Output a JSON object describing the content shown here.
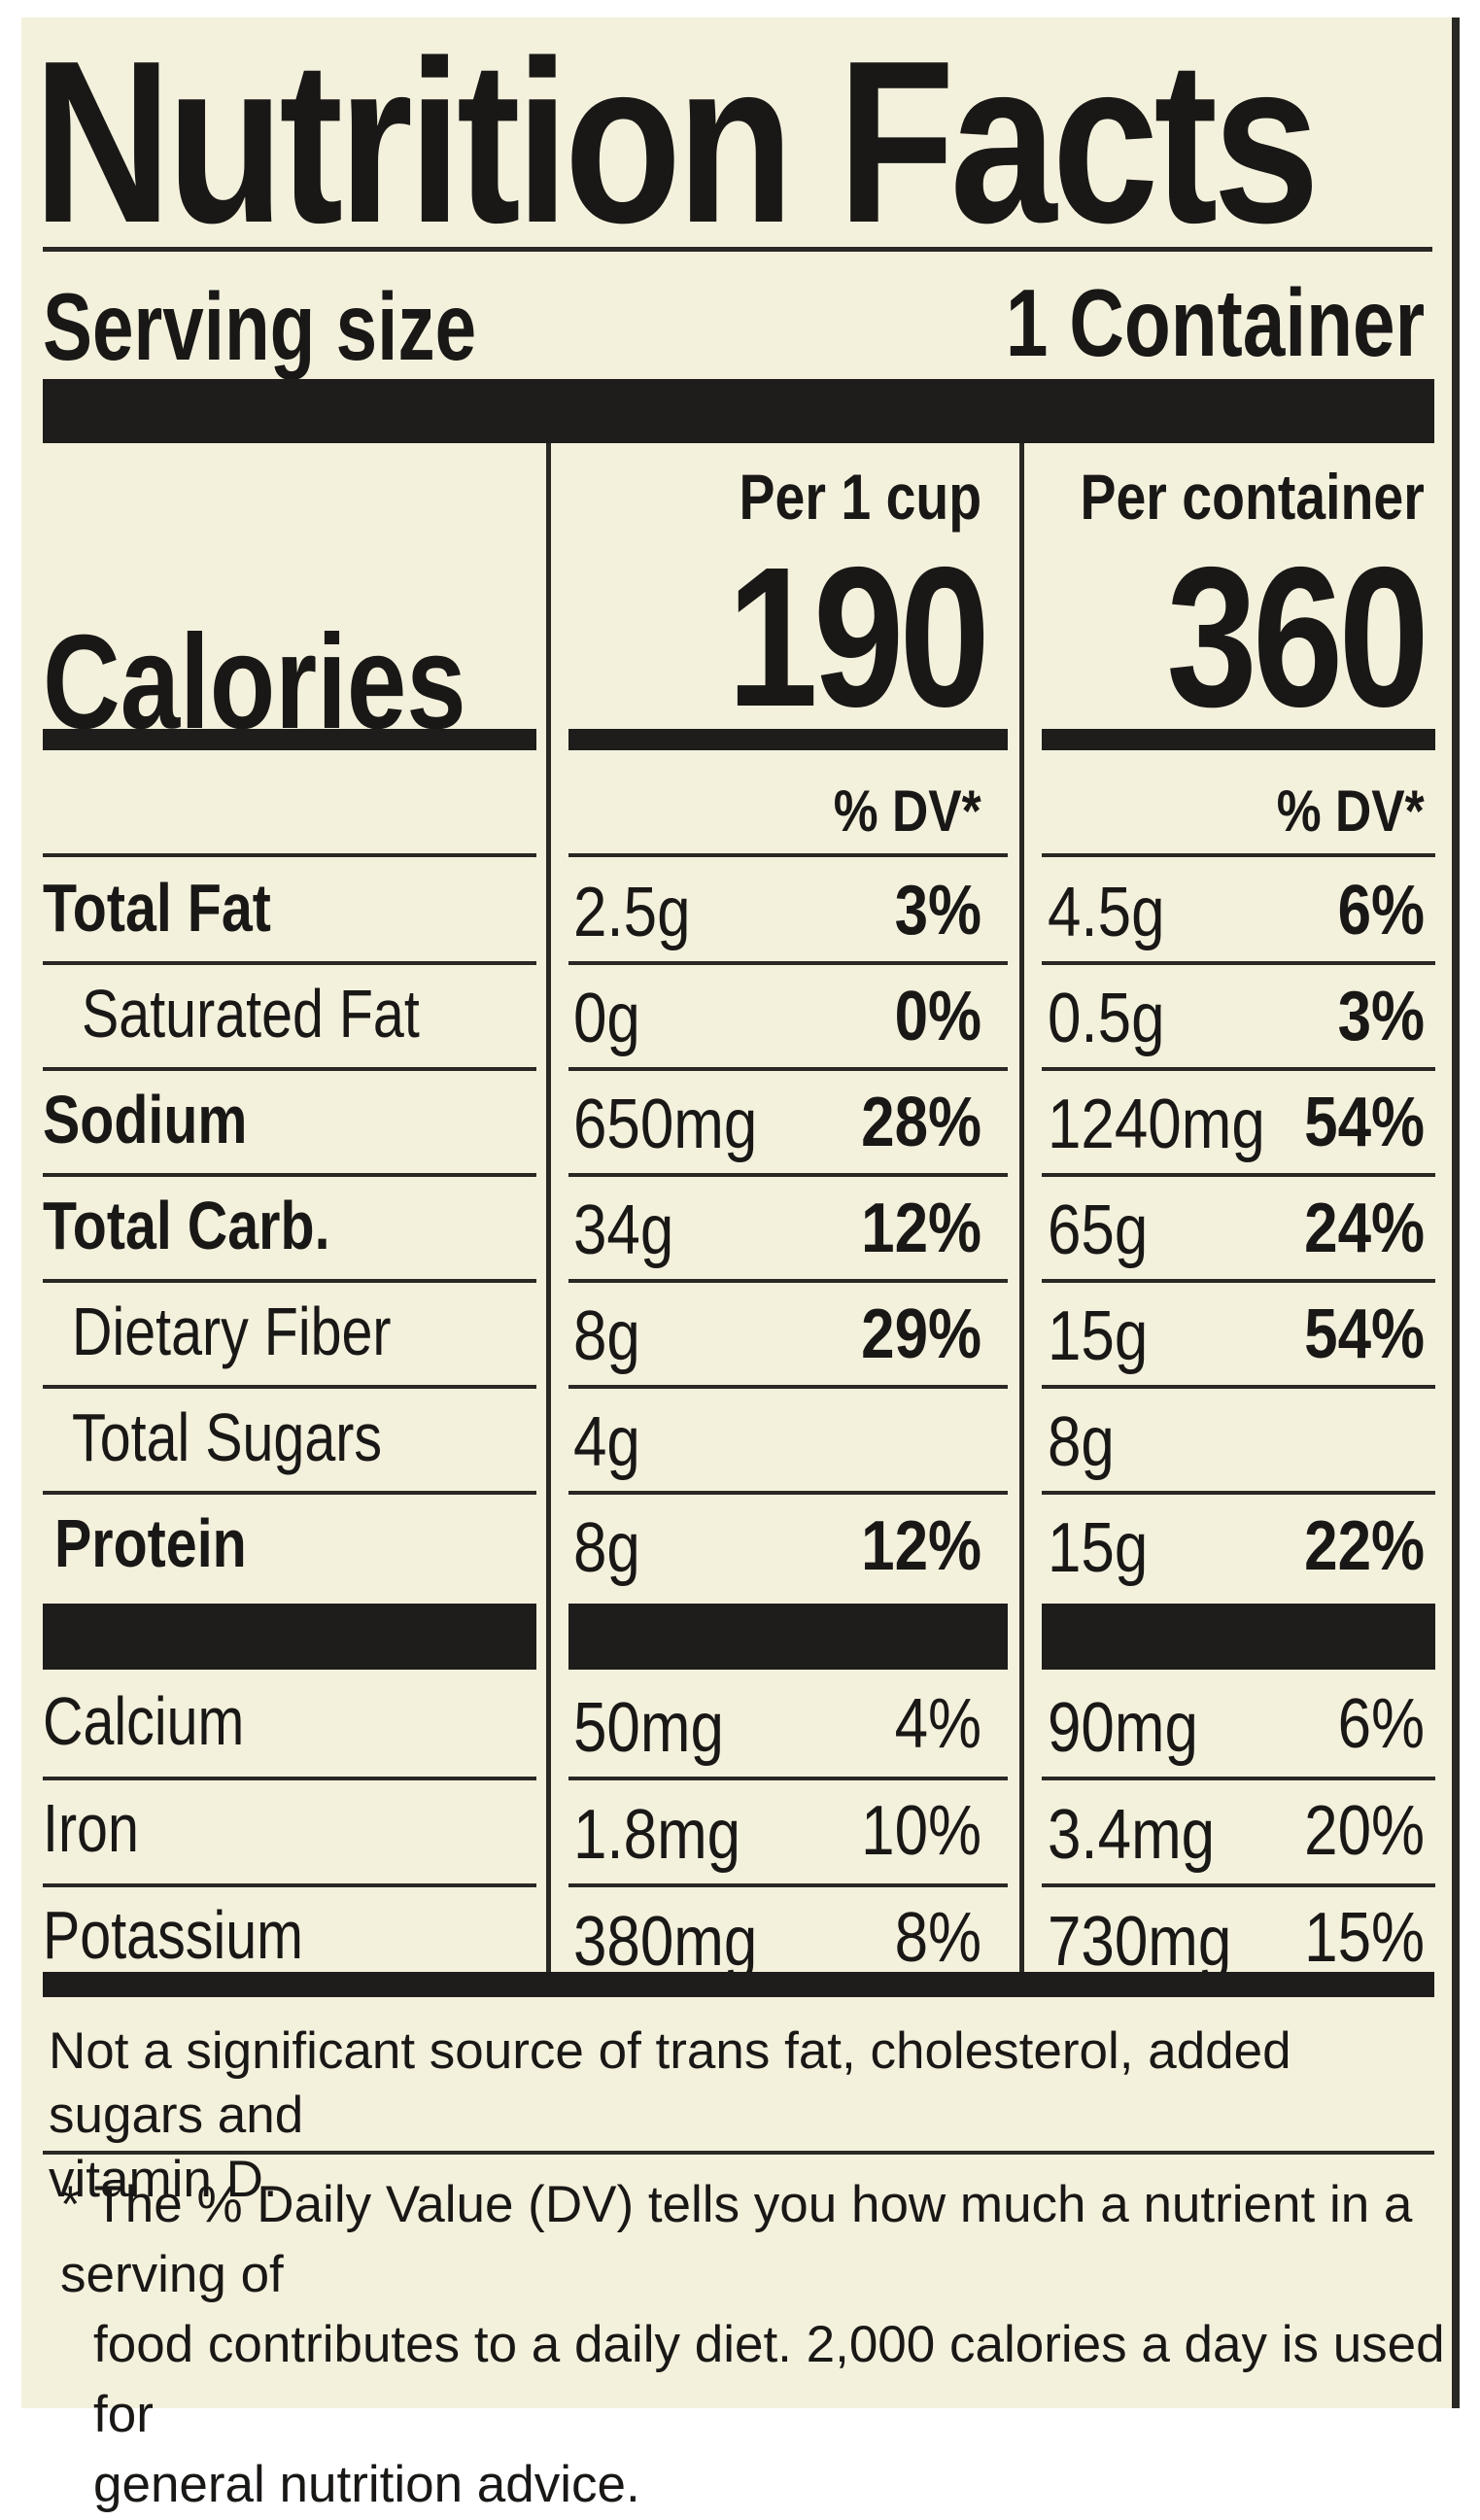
{
  "label": {
    "title": "Nutrition Facts",
    "serving_size_label": "Serving size",
    "serving_size_value": "1 Container",
    "col1_header": "Per 1 cup",
    "col2_header": "Per container",
    "calories_label": "Calories",
    "calories_col1": "190",
    "calories_col2": "360",
    "dv_header": "% DV*",
    "nutrients": [
      {
        "name": "Total Fat",
        "bold": true,
        "col1_amount": "2.5g",
        "col1_dv": "3%",
        "col2_amount": "4.5g",
        "col2_dv": "6%"
      },
      {
        "name": "Saturated Fat",
        "bold": false,
        "col1_amount": "0g",
        "col1_dv": "0%",
        "col2_amount": "0.5g",
        "col2_dv": "3%"
      },
      {
        "name": "Sodium",
        "bold": true,
        "col1_amount": "650mg",
        "col1_dv": "28%",
        "col2_amount": "1240mg",
        "col2_dv": "54%"
      },
      {
        "name": "Total Carb.",
        "bold": true,
        "col1_amount": "34g",
        "col1_dv": "12%",
        "col2_amount": "65g",
        "col2_dv": "24%"
      },
      {
        "name": "Dietary Fiber",
        "bold": false,
        "col1_amount": "8g",
        "col1_dv": "29%",
        "col2_amount": "15g",
        "col2_dv": "54%"
      },
      {
        "name": "Total Sugars",
        "bold": false,
        "col1_amount": "4g",
        "col1_dv": "",
        "col2_amount": "8g",
        "col2_dv": ""
      },
      {
        "name": "Protein",
        "bold": true,
        "col1_amount": "8g",
        "col1_dv": "12%",
        "col2_amount": "15g",
        "col2_dv": "22%"
      }
    ],
    "minerals": [
      {
        "name": "Calcium",
        "col1_amount": "50mg",
        "col1_dv": "4%",
        "col2_amount": "90mg",
        "col2_dv": "6%"
      },
      {
        "name": "Iron",
        "col1_amount": "1.8mg",
        "col1_dv": "10%",
        "col2_amount": "3.4mg",
        "col2_dv": "20%"
      },
      {
        "name": "Potassium",
        "col1_amount": "380mg",
        "col1_dv": "8%",
        "col2_amount": "730mg",
        "col2_dv": "15%"
      }
    ],
    "footnote_source": [
      "Not a significant source of trans fat, cholesterol, added sugars and",
      "vitamin D."
    ],
    "footnote_dv": [
      "* The % Daily Value (DV) tells you how much a nutrient in a serving of",
      "food contributes to a daily diet. 2,000 calories a day is used for",
      "general nutrition advice."
    ],
    "colors": {
      "background": "#f3f1dc",
      "ink": "#1a1816"
    }
  }
}
